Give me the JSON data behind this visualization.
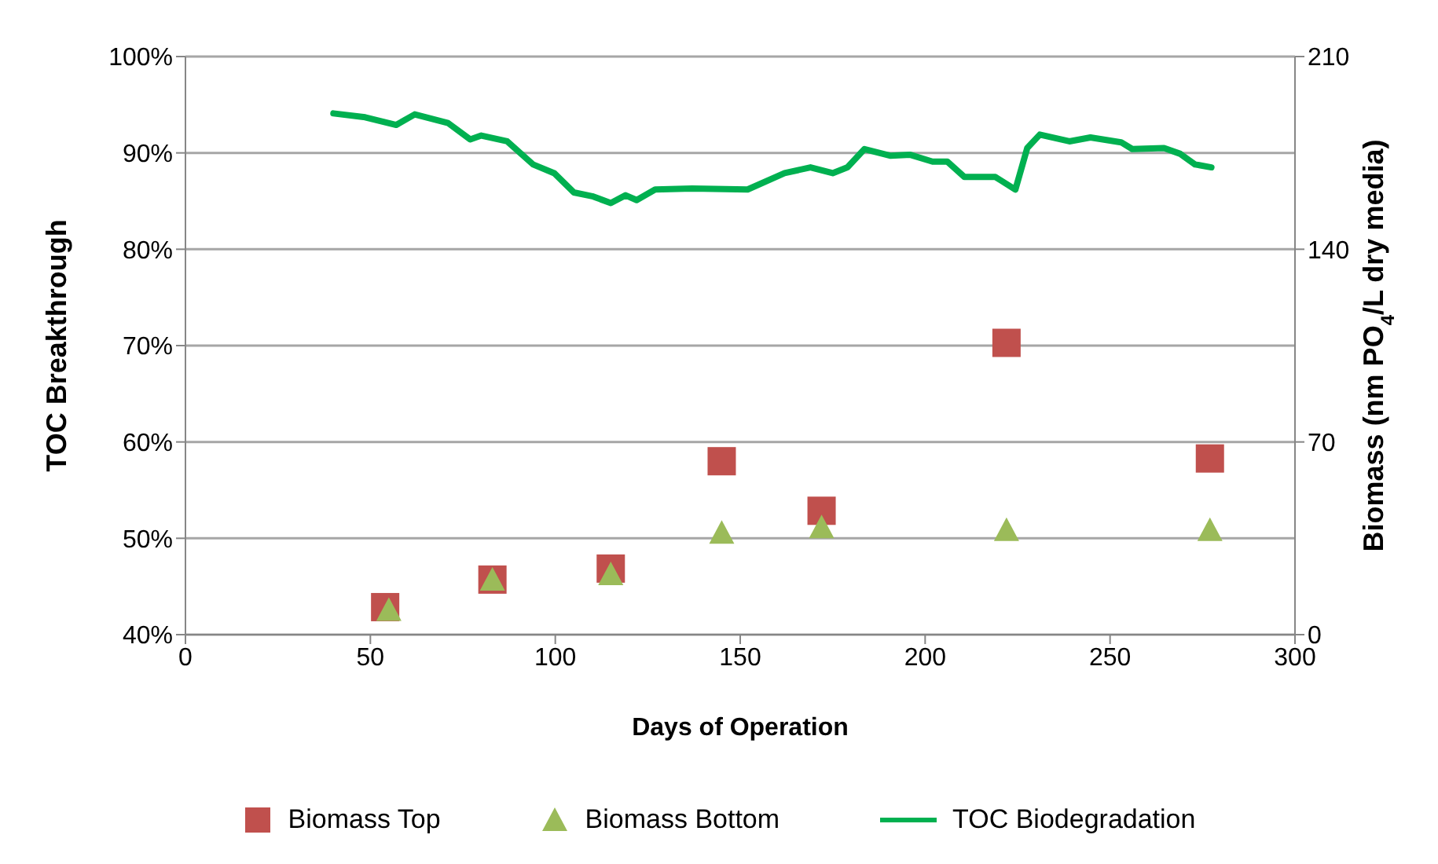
{
  "chart_data": {
    "type": "scatter",
    "xlabel": "Days of Operation",
    "ylabel": "TOC Breakthrough",
    "y2label": "Biomass (nm PO$_{4}$/L dry media)",
    "xlim": [
      0,
      300
    ],
    "xticks": [
      0,
      50,
      100,
      150,
      200,
      250,
      300
    ],
    "ylim": [
      40,
      100
    ],
    "yticks": [
      {
        "value": 40,
        "label": "40%"
      },
      {
        "value": 50,
        "label": "50%"
      },
      {
        "value": 60,
        "label": "60%"
      },
      {
        "value": 70,
        "label": "70%"
      },
      {
        "value": 80,
        "label": "80%"
      },
      {
        "value": 90,
        "label": "90%"
      },
      {
        "value": 100,
        "label": "100%"
      }
    ],
    "y2lim": [
      0,
      210
    ],
    "y2ticks": [
      0,
      70,
      140,
      210
    ],
    "grid": "y",
    "legend": "bottom",
    "series": [
      {
        "name": "Biomass Top",
        "marker": "square",
        "axis": "y2",
        "color": "#c0504d",
        "x": [
          54,
          83,
          115,
          145,
          172,
          222,
          277
        ],
        "values": [
          10,
          20,
          24,
          63,
          45,
          106,
          64
        ]
      },
      {
        "name": "Biomass Bottom",
        "marker": "triangle",
        "axis": "y2",
        "color": "#9bbb59",
        "x": [
          55,
          83,
          115,
          145,
          172,
          222,
          277
        ],
        "values": [
          9,
          20,
          22,
          37,
          39,
          38,
          38
        ]
      },
      {
        "name": "TOC Biodegradation",
        "type": "line",
        "marker": "none",
        "line_style": "solid",
        "axis": "y",
        "color": "#00b050",
        "x": [
          40,
          48.6,
          57,
          62,
          71,
          77,
          80,
          87,
          94,
          99.7,
          105,
          110,
          115,
          119,
          122,
          127,
          137,
          152,
          162,
          169,
          175,
          179,
          183.6,
          190.7,
          196,
          202,
          206,
          210.6,
          219,
          224.4,
          227.6,
          231,
          239,
          244.7,
          253,
          256,
          264.6,
          269,
          273,
          277.4
        ],
        "values": [
          94.1,
          93.7,
          92.9,
          94,
          93.1,
          91.4,
          91.8,
          91.2,
          88.8,
          87.9,
          85.9,
          85.5,
          84.8,
          85.6,
          85.1,
          86.2,
          86.3,
          86.2,
          87.9,
          88.5,
          87.9,
          88.5,
          90.4,
          89.7,
          89.8,
          89.1,
          89.1,
          87.5,
          87.5,
          86.2,
          90.5,
          91.9,
          91.2,
          91.6,
          91.1,
          90.4,
          90.5,
          89.9,
          88.8,
          88.5
        ]
      }
    ]
  }
}
